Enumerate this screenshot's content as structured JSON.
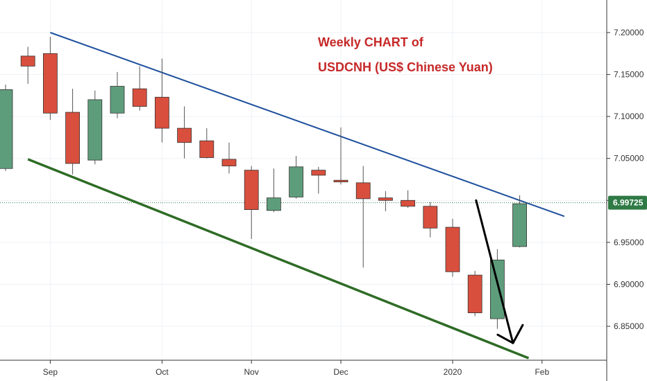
{
  "colors": {
    "up": "#5e9d7b",
    "down": "#d94f3d",
    "wick": "#555555",
    "upper_trend": "#1d4f9c",
    "lower_trend": "#2e6b25",
    "arrow": "#000000",
    "title": "#c62828",
    "price_badge": "#2f7a45",
    "price_line": "#2f7a45",
    "axis": "#333333"
  },
  "chart_data": {
    "type": "candlestick",
    "timeframe": "weekly",
    "title_lines": [
      "Weekly CHART of",
      "USDCNH (US$ Chinese Yuan)"
    ],
    "x_ticks": [
      "Sep",
      "Oct",
      "Nov",
      "Dec",
      "2020",
      "Feb"
    ],
    "y_ticks": [
      "6.85000",
      "6.90000",
      "6.95000",
      "7.00000",
      "7.05000",
      "7.10000",
      "7.15000",
      "7.20000"
    ],
    "ylim": [
      6.81,
      7.235
    ],
    "last_price": "6.99725",
    "grid": true,
    "candles": [
      {
        "open": 7.038,
        "close": 7.132,
        "high": 7.138,
        "low": 7.035
      },
      {
        "open": 7.172,
        "close": 7.16,
        "high": 7.183,
        "low": 7.139
      },
      {
        "open": 7.175,
        "close": 7.104,
        "high": 7.195,
        "low": 7.096
      },
      {
        "open": 7.105,
        "close": 7.044,
        "high": 7.133,
        "low": 7.031
      },
      {
        "open": 7.048,
        "close": 7.12,
        "high": 7.131,
        "low": 7.043
      },
      {
        "open": 7.104,
        "close": 7.136,
        "high": 7.153,
        "low": 7.098
      },
      {
        "open": 7.133,
        "close": 7.112,
        "high": 7.16,
        "low": 7.107
      },
      {
        "open": 7.123,
        "close": 7.086,
        "high": 7.169,
        "low": 7.069
      },
      {
        "open": 7.086,
        "close": 7.069,
        "high": 7.112,
        "low": 7.05
      },
      {
        "open": 7.071,
        "close": 7.051,
        "high": 7.086,
        "low": 7.05
      },
      {
        "open": 7.049,
        "close": 7.041,
        "high": 7.069,
        "low": 7.032
      },
      {
        "open": 7.036,
        "close": 6.989,
        "high": 7.041,
        "low": 6.954
      },
      {
        "open": 6.988,
        "close": 7.003,
        "high": 7.038,
        "low": 6.986
      },
      {
        "open": 7.004,
        "close": 7.04,
        "high": 7.053,
        "low": 7.002
      },
      {
        "open": 7.036,
        "close": 7.03,
        "high": 7.04,
        "low": 7.008
      },
      {
        "open": 7.024,
        "close": 7.022,
        "high": 7.087,
        "low": 7.019
      },
      {
        "open": 7.021,
        "close": 7.002,
        "high": 7.041,
        "low": 6.92
      },
      {
        "open": 7.003,
        "close": 7.0,
        "high": 7.011,
        "low": 6.987
      },
      {
        "open": 7.0,
        "close": 6.993,
        "high": 7.012,
        "low": 6.991
      },
      {
        "open": 6.993,
        "close": 6.967,
        "high": 6.998,
        "low": 6.956
      },
      {
        "open": 6.968,
        "close": 6.915,
        "high": 6.978,
        "low": 6.909
      },
      {
        "open": 6.911,
        "close": 6.866,
        "high": 6.916,
        "low": 6.862
      },
      {
        "open": 6.859,
        "close": 6.929,
        "high": 6.942,
        "low": 6.847
      },
      {
        "open": 6.945,
        "close": 6.996,
        "high": 7.006,
        "low": 6.944
      }
    ],
    "trendlines": [
      {
        "name": "upper",
        "from": {
          "candle": 2,
          "price": 7.2
        },
        "to": {
          "candle": 25,
          "price": 6.981
        }
      },
      {
        "name": "lower",
        "from": {
          "candle": 1,
          "price": 7.049
        },
        "to": {
          "candle": 23.4,
          "price": 6.812
        }
      }
    ],
    "projection_arrow": {
      "from": {
        "candle": 21.05,
        "price": 7.0
      },
      "to": {
        "candle": 22.7,
        "price": 6.83
      }
    }
  }
}
